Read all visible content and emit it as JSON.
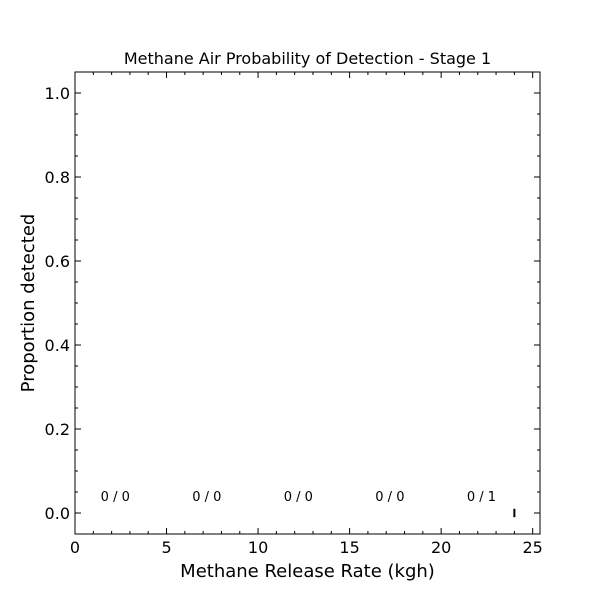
{
  "chart_data": {
    "type": "scatter",
    "title": "Methane Air Probability of Detection - Stage 1",
    "xlabel": "Methane Release Rate (kgh)",
    "ylabel": "Proportion detected",
    "xlim": [
      0,
      25.4
    ],
    "ylim": [
      -0.05,
      1.05
    ],
    "xticks": [
      0,
      5,
      10,
      15,
      20,
      25
    ],
    "yticks": [
      0.0,
      0.2,
      0.4,
      0.6,
      0.8,
      1.0
    ],
    "grid": false,
    "annotations": [
      {
        "x": 2.2,
        "text": "0 / 0"
      },
      {
        "x": 7.2,
        "text": "0 / 0"
      },
      {
        "x": 12.2,
        "text": "0 / 0"
      },
      {
        "x": 17.2,
        "text": "0 / 0"
      },
      {
        "x": 22.2,
        "text": "0 / 1"
      }
    ],
    "annotation_y": 0.04,
    "points": [
      {
        "x": 24.0,
        "y": 0.0,
        "err": 0.01
      }
    ],
    "colors": {
      "axes": "#000000",
      "marker": "#000000",
      "background": "#ffffff"
    }
  }
}
